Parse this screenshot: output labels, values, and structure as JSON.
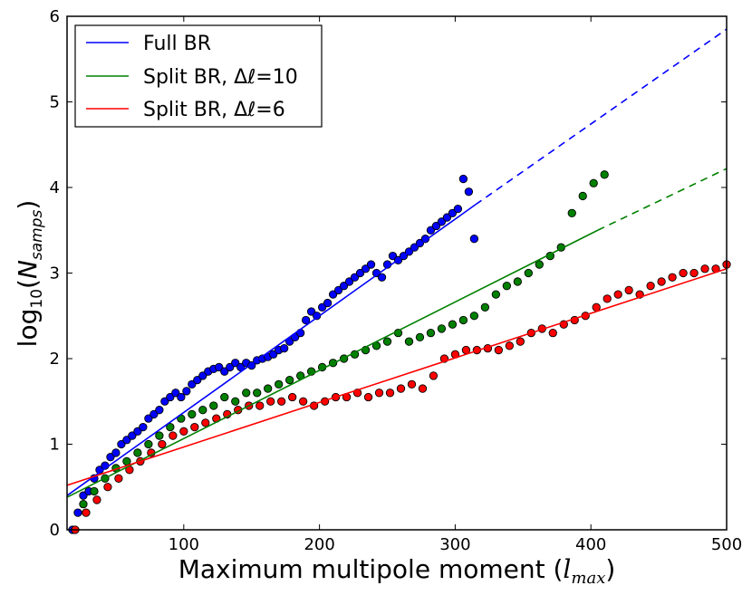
{
  "chart_data": {
    "type": "scatter",
    "xlabel": "Maximum multipole moment (",
    "xlabel_math": "l",
    "xlabel_math_sub": "max",
    "xlabel_close": ")",
    "ylabel_prefix": "log",
    "ylabel_sub": "10",
    "ylabel_open": "(",
    "ylabel_var": "N",
    "ylabel_var_sub": "samps",
    "ylabel_close": ")",
    "xlim": [
      14,
      500
    ],
    "ylim": [
      0,
      6
    ],
    "xticks": [
      100,
      200,
      300,
      400,
      500
    ],
    "yticks": [
      0,
      1,
      2,
      3,
      4,
      5,
      6
    ],
    "grid": false,
    "legend_position": "top-left",
    "series": [
      {
        "name": "Full BR",
        "color": "#0000ff",
        "points": [
          [
            18,
            0.0
          ],
          [
            22,
            0.2
          ],
          [
            26,
            0.4
          ],
          [
            30,
            0.45
          ],
          [
            34,
            0.6
          ],
          [
            38,
            0.7
          ],
          [
            42,
            0.75
          ],
          [
            46,
            0.85
          ],
          [
            50,
            0.9
          ],
          [
            54,
            1.0
          ],
          [
            58,
            1.05
          ],
          [
            62,
            1.1
          ],
          [
            66,
            1.15
          ],
          [
            70,
            1.2
          ],
          [
            74,
            1.3
          ],
          [
            78,
            1.35
          ],
          [
            82,
            1.4
          ],
          [
            86,
            1.5
          ],
          [
            90,
            1.55
          ],
          [
            94,
            1.6
          ],
          [
            98,
            1.55
          ],
          [
            102,
            1.62
          ],
          [
            106,
            1.7
          ],
          [
            110,
            1.75
          ],
          [
            114,
            1.8
          ],
          [
            118,
            1.85
          ],
          [
            122,
            1.88
          ],
          [
            126,
            1.9
          ],
          [
            130,
            1.85
          ],
          [
            134,
            1.9
          ],
          [
            138,
            1.95
          ],
          [
            142,
            1.9
          ],
          [
            146,
            1.95
          ],
          [
            150,
            1.92
          ],
          [
            154,
            1.98
          ],
          [
            158,
            2.0
          ],
          [
            162,
            2.02
          ],
          [
            166,
            2.05
          ],
          [
            170,
            2.1
          ],
          [
            174,
            2.12
          ],
          [
            178,
            2.2
          ],
          [
            182,
            2.25
          ],
          [
            186,
            2.3
          ],
          [
            190,
            2.45
          ],
          [
            194,
            2.55
          ],
          [
            198,
            2.5
          ],
          [
            202,
            2.6
          ],
          [
            206,
            2.65
          ],
          [
            210,
            2.75
          ],
          [
            214,
            2.8
          ],
          [
            218,
            2.85
          ],
          [
            222,
            2.9
          ],
          [
            226,
            2.95
          ],
          [
            230,
            3.0
          ],
          [
            234,
            3.05
          ],
          [
            238,
            3.1
          ],
          [
            242,
            3.0
          ],
          [
            246,
            2.95
          ],
          [
            250,
            3.1
          ],
          [
            254,
            3.2
          ],
          [
            258,
            3.15
          ],
          [
            262,
            3.2
          ],
          [
            266,
            3.25
          ],
          [
            270,
            3.3
          ],
          [
            274,
            3.35
          ],
          [
            278,
            3.4
          ],
          [
            282,
            3.5
          ],
          [
            286,
            3.55
          ],
          [
            290,
            3.6
          ],
          [
            294,
            3.65
          ],
          [
            298,
            3.7
          ],
          [
            302,
            3.75
          ],
          [
            306,
            4.1
          ],
          [
            310,
            3.95
          ],
          [
            314,
            3.4
          ]
        ],
        "fit": {
          "solid": [
            [
              14,
              0.4
            ],
            [
              315,
              3.8
            ]
          ],
          "dashed": [
            [
              315,
              3.8
            ],
            [
              500,
              5.85
            ]
          ]
        }
      },
      {
        "name": "Split BR, Δℓ=10",
        "color": "#008000",
        "points": [
          [
            26,
            0.3
          ],
          [
            34,
            0.45
          ],
          [
            42,
            0.6
          ],
          [
            50,
            0.72
          ],
          [
            58,
            0.8
          ],
          [
            66,
            0.9
          ],
          [
            74,
            1.0
          ],
          [
            82,
            1.1
          ],
          [
            90,
            1.2
          ],
          [
            98,
            1.3
          ],
          [
            106,
            1.35
          ],
          [
            114,
            1.4
          ],
          [
            122,
            1.45
          ],
          [
            130,
            1.55
          ],
          [
            138,
            1.5
          ],
          [
            146,
            1.6
          ],
          [
            154,
            1.6
          ],
          [
            162,
            1.65
          ],
          [
            170,
            1.7
          ],
          [
            178,
            1.75
          ],
          [
            186,
            1.8
          ],
          [
            194,
            1.85
          ],
          [
            202,
            1.9
          ],
          [
            210,
            1.95
          ],
          [
            218,
            2.0
          ],
          [
            226,
            2.05
          ],
          [
            234,
            2.1
          ],
          [
            242,
            2.15
          ],
          [
            250,
            2.2
          ],
          [
            258,
            2.3
          ],
          [
            266,
            2.2
          ],
          [
            274,
            2.25
          ],
          [
            282,
            2.3
          ],
          [
            290,
            2.35
          ],
          [
            298,
            2.4
          ],
          [
            306,
            2.45
          ],
          [
            314,
            2.5
          ],
          [
            322,
            2.6
          ],
          [
            330,
            2.75
          ],
          [
            338,
            2.85
          ],
          [
            346,
            2.9
          ],
          [
            354,
            3.0
          ],
          [
            362,
            3.1
          ],
          [
            370,
            3.2
          ],
          [
            378,
            3.3
          ],
          [
            386,
            3.7
          ],
          [
            394,
            3.9
          ],
          [
            402,
            4.05
          ],
          [
            410,
            4.15
          ]
        ],
        "fit": {
          "solid": [
            [
              14,
              0.38
            ],
            [
              405,
              3.5
            ]
          ],
          "dashed": [
            [
              405,
              3.5
            ],
            [
              500,
              4.22
            ]
          ]
        }
      },
      {
        "name": "Split BR, Δℓ=6",
        "color": "#ff0000",
        "points": [
          [
            20,
            0.0
          ],
          [
            28,
            0.2
          ],
          [
            36,
            0.35
          ],
          [
            44,
            0.5
          ],
          [
            52,
            0.6
          ],
          [
            60,
            0.7
          ],
          [
            68,
            0.8
          ],
          [
            76,
            0.9
          ],
          [
            84,
            1.0
          ],
          [
            92,
            1.1
          ],
          [
            100,
            1.15
          ],
          [
            108,
            1.2
          ],
          [
            116,
            1.25
          ],
          [
            124,
            1.3
          ],
          [
            132,
            1.35
          ],
          [
            140,
            1.4
          ],
          [
            148,
            1.45
          ],
          [
            156,
            1.45
          ],
          [
            164,
            1.5
          ],
          [
            172,
            1.5
          ],
          [
            180,
            1.55
          ],
          [
            188,
            1.5
          ],
          [
            196,
            1.45
          ],
          [
            204,
            1.5
          ],
          [
            212,
            1.55
          ],
          [
            220,
            1.55
          ],
          [
            228,
            1.6
          ],
          [
            236,
            1.55
          ],
          [
            244,
            1.6
          ],
          [
            252,
            1.6
          ],
          [
            260,
            1.65
          ],
          [
            268,
            1.7
          ],
          [
            276,
            1.65
          ],
          [
            284,
            1.8
          ],
          [
            292,
            2.0
          ],
          [
            300,
            2.05
          ],
          [
            308,
            2.1
          ],
          [
            316,
            2.1
          ],
          [
            324,
            2.12
          ],
          [
            332,
            2.1
          ],
          [
            340,
            2.15
          ],
          [
            348,
            2.2
          ],
          [
            356,
            2.3
          ],
          [
            364,
            2.35
          ],
          [
            372,
            2.3
          ],
          [
            380,
            2.4
          ],
          [
            388,
            2.45
          ],
          [
            396,
            2.5
          ],
          [
            404,
            2.6
          ],
          [
            412,
            2.7
          ],
          [
            420,
            2.75
          ],
          [
            428,
            2.8
          ],
          [
            436,
            2.75
          ],
          [
            444,
            2.85
          ],
          [
            452,
            2.9
          ],
          [
            460,
            2.95
          ],
          [
            468,
            3.0
          ],
          [
            476,
            3.0
          ],
          [
            484,
            3.05
          ],
          [
            492,
            3.05
          ],
          [
            500,
            3.1
          ]
        ],
        "fit": {
          "solid": [
            [
              14,
              0.52
            ],
            [
              500,
              3.05
            ]
          ],
          "dashed": []
        }
      }
    ]
  }
}
